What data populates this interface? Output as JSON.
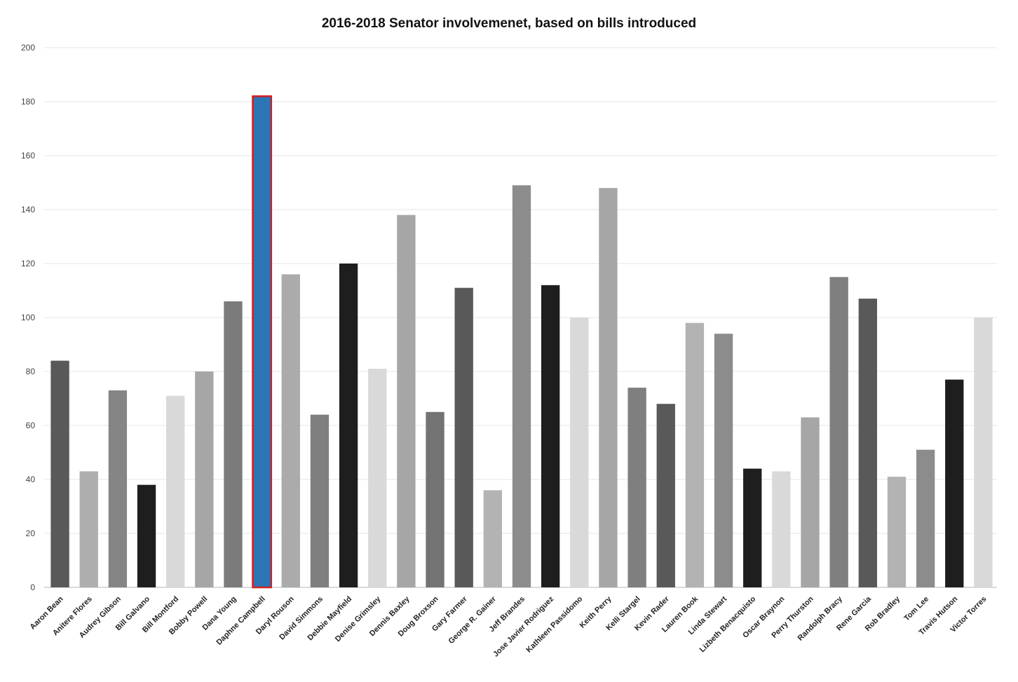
{
  "chart_data": {
    "type": "bar",
    "title": "2016-2018 Senator involvemenet, based on bills introduced",
    "xlabel": "",
    "ylabel": "",
    "ylim": [
      0,
      200
    ],
    "yticks": [
      0,
      20,
      40,
      60,
      80,
      100,
      120,
      140,
      160,
      180,
      200
    ],
    "grid": true,
    "legend": "none",
    "highlight": {
      "category": "Daphne Campbell",
      "fill": "#2e75b6",
      "outline": "#d42020"
    },
    "categories": [
      "Aaron Bean",
      "Anitere Flores",
      "Audrey Gibson",
      "Bill Galvano",
      "Bill Montford",
      "Bobby Powell",
      "Dana Young",
      "Daphne Campbell",
      "Daryl Rouson",
      "David Simmons",
      "Debbie Mayfield",
      "Denise Grimsley",
      "Dennis Baxley",
      "Doug Broxson",
      "Gary Farmer",
      "George R. Gainer",
      "Jeff Brandes",
      "Jose Javier Rodriguez",
      "Kathleen Passidomo",
      "Keith Perry",
      "Kelli Stargel",
      "Kevin Rader",
      "Lauren Book",
      "Linda Stewart",
      "Lizbeth Benacquisto",
      "Oscar Braynon",
      "Perry Thurston",
      "Randolph Bracy",
      "Rene Garcia",
      "Rob Bradley",
      "Tom Lee",
      "Travis Hutson",
      "Victor Torres"
    ],
    "values": [
      84,
      43,
      73,
      38,
      71,
      80,
      106,
      182,
      116,
      64,
      120,
      81,
      138,
      65,
      111,
      36,
      149,
      112,
      100,
      148,
      74,
      68,
      98,
      94,
      44,
      43,
      63,
      115,
      107,
      41,
      51,
      77,
      100
    ],
    "colors": [
      "#595959",
      "#aeaeae",
      "#858585",
      "#1e1e1e",
      "#d9d9d9",
      "#a6a6a6",
      "#7b7b7b",
      "#2e75b6",
      "#ababab",
      "#7f7f7f",
      "#1e1e1e",
      "#d9d9d9",
      "#a6a6a6",
      "#737373",
      "#595959",
      "#b3b3b3",
      "#8c8c8c",
      "#1e1e1e",
      "#d9d9d9",
      "#a6a6a6",
      "#7f7f7f",
      "#595959",
      "#b3b3b3",
      "#8c8c8c",
      "#1e1e1e",
      "#d9d9d9",
      "#a6a6a6",
      "#7f7f7f",
      "#595959",
      "#b3b3b3",
      "#8c8c8c",
      "#1e1e1e",
      "#d9d9d9"
    ]
  }
}
